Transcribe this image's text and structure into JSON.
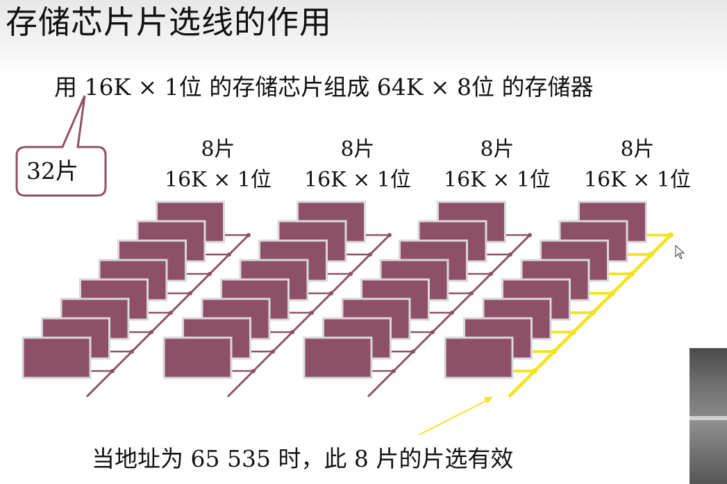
{
  "slide": {
    "title": "存储芯片片选线的作用",
    "subtitle": "用 16K × 1位 的存储芯片组成 64K × 8位 的存储器",
    "callout": "32片",
    "groups": [
      {
        "count": "8片",
        "spec": "16K × 1位"
      },
      {
        "count": "8片",
        "spec": "16K × 1位"
      },
      {
        "count": "8片",
        "spec": "16K × 1位"
      },
      {
        "count": "8片",
        "spec": "16K × 1位"
      }
    ],
    "caption": "当地址为 65 535 时，此 8 片的片选有效",
    "highlighted_group": 4
  },
  "colors": {
    "chip_fill": "#8e5069",
    "chip_border": "#d9d9d9",
    "bus_line": "#8e5069",
    "active_bus": "#f3e326",
    "callout_border": "#8e5069",
    "arrow": "#f3e326"
  },
  "icons": [
    "cursor-arrow-icon"
  ]
}
